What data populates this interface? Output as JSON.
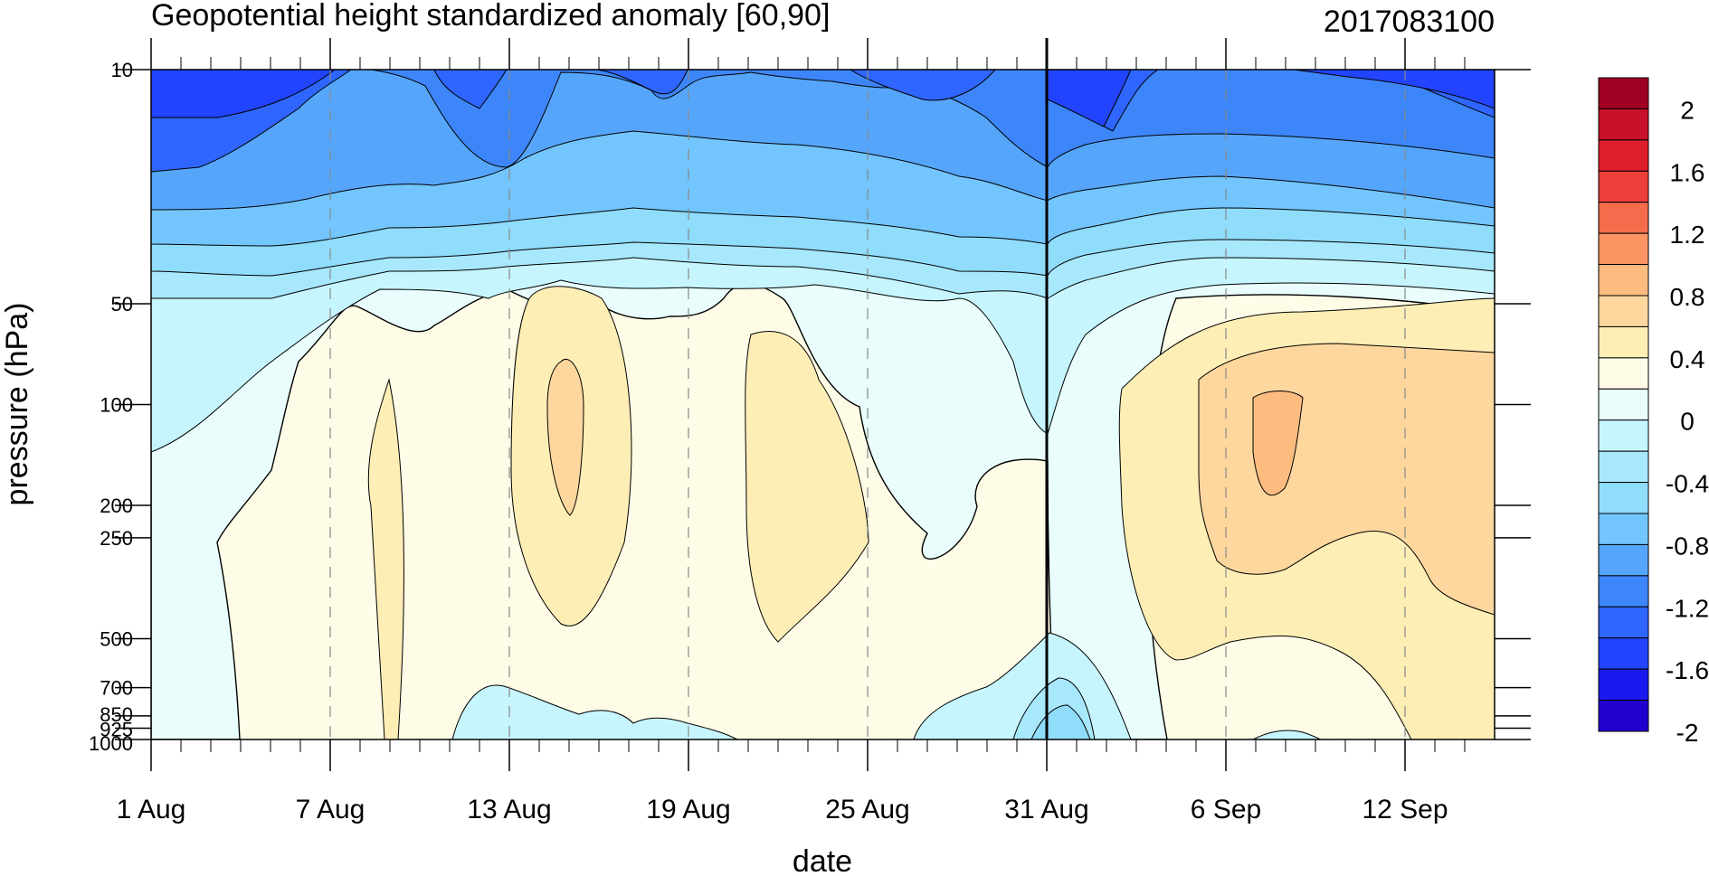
{
  "chart_data": {
    "type": "heatmap",
    "title": "Geopotential height standardized anomaly [60,90]",
    "run_label": "2017083100",
    "xlabel": "date",
    "ylabel": "pressure (hPa)",
    "x_ticks": [
      {
        "label": "1 Aug",
        "day": 0
      },
      {
        "label": "7 Aug",
        "day": 6
      },
      {
        "label": "13 Aug",
        "day": 12
      },
      {
        "label": "19 Aug",
        "day": 18
      },
      {
        "label": "25 Aug",
        "day": 24
      },
      {
        "label": "31 Aug",
        "day": 30
      },
      {
        "label": "6 Sep",
        "day": 36
      },
      {
        "label": "12 Sep",
        "day": 42
      }
    ],
    "x_range_days": [
      0,
      45
    ],
    "analysis_date_day": 30,
    "y_ticks": [
      {
        "label": "10",
        "p": 10
      },
      {
        "label": "50",
        "p": 50
      },
      {
        "label": "100",
        "p": 100
      },
      {
        "label": "200",
        "p": 200
      },
      {
        "label": "250",
        "p": 250
      },
      {
        "label": "500",
        "p": 500
      },
      {
        "label": "700",
        "p": 700
      },
      {
        "label": "850",
        "p": 850
      },
      {
        "label": "925",
        "p": 925
      },
      {
        "label": "1000",
        "p": 1000
      }
    ],
    "y_scale": "log",
    "y_range": [
      1000,
      10
    ],
    "levels": [
      -2,
      -1.8,
      -1.6,
      -1.4,
      -1.2,
      -1,
      -0.8,
      -0.6,
      -0.4,
      -0.2,
      0,
      0.2,
      0.4,
      0.6,
      0.8,
      1,
      1.2,
      1.4,
      1.6,
      1.8,
      2
    ],
    "colorbar_labels": [
      "2",
      "1.6",
      "1.2",
      "0.8",
      "0.4",
      "0",
      "-0.4",
      "-0.8",
      "-1.2",
      "-1.6",
      "-2"
    ],
    "colors": [
      "#2000cc",
      "#1a1aee",
      "#2244ff",
      "#2e66ff",
      "#3d86f9",
      "#55a6fb",
      "#72c6fd",
      "#8fdcfb",
      "#a8e8fd",
      "#c6f5fd",
      "#e8fdfc",
      "#fefbe6",
      "#fdeeb6",
      "#fdd79e",
      "#fcbc80",
      "#fb9463",
      "#f46c4c",
      "#ec3e3a",
      "#df1e2c",
      "#c8102a",
      "#a00021"
    ],
    "grid": "dashed vertical lines at date ticks",
    "legend": "colorbar right"
  }
}
